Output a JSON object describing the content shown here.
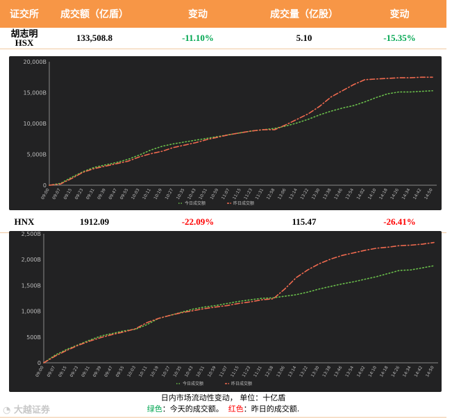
{
  "table": {
    "headers": [
      "证交所",
      "成交额（亿盾）",
      "变动",
      "成交量（亿股）",
      "变动"
    ],
    "rows": [
      {
        "exchange_line1": "胡志明",
        "exchange_line2": "HSX",
        "value": "133,508.8",
        "value_change": "-11.10%",
        "volume": "5.10",
        "volume_change": "-15.35%"
      },
      {
        "exchange": "HNX",
        "value": "1912.09",
        "value_change": "-22.09%",
        "volume": "115.47",
        "volume_change": "-26.41%"
      }
    ]
  },
  "colors": {
    "header_bg": "#f79646",
    "today": "#6abf4b",
    "yesterday": "#f06a4f",
    "up": "#00a651",
    "down": "#ff0000",
    "chart_bg": "#222223"
  },
  "chart_data": [
    {
      "type": "line",
      "x": [
        "09:00",
        "09:07",
        "09:15",
        "09:23",
        "09:31",
        "09:39",
        "09:47",
        "09:55",
        "10:03",
        "10:11",
        "10:19",
        "10:27",
        "10:35",
        "10:43",
        "10:51",
        "10:59",
        "11:07",
        "11:15",
        "11:23",
        "11:31",
        "12:58",
        "13:06",
        "13:14",
        "13:22",
        "13:30",
        "13:38",
        "13:46",
        "13:54",
        "14:02",
        "14:10",
        "14:18",
        "14:26",
        "14:34",
        "14:42",
        "14:50"
      ],
      "ytick_labels": [
        "0",
        "5,000B",
        "10,000B",
        "15,000B",
        "20,000B"
      ],
      "ylim": [
        0,
        20000
      ],
      "legend": [
        "今日成交额",
        "昨日成交额"
      ],
      "series": [
        {
          "name": "今日成交额",
          "values": [
            0,
            300,
            1300,
            2200,
            2900,
            3300,
            3700,
            4200,
            4900,
            5700,
            6300,
            6700,
            7000,
            7300,
            7600,
            7900,
            8200,
            8500,
            8800,
            9000,
            9200,
            9600,
            10100,
            10700,
            11400,
            12000,
            12500,
            12900,
            13500,
            14200,
            14800,
            15100,
            15100,
            15200,
            15300
          ]
        },
        {
          "name": "昨日成交额",
          "values": [
            0,
            200,
            1100,
            2100,
            2700,
            3100,
            3500,
            3900,
            4600,
            5100,
            5500,
            6100,
            6500,
            6900,
            7400,
            7800,
            8200,
            8500,
            8800,
            9000,
            9000,
            9800,
            10700,
            11600,
            12800,
            14300,
            15300,
            16300,
            17100,
            17200,
            17300,
            17400,
            17400,
            17500,
            17500
          ]
        }
      ]
    },
    {
      "type": "line",
      "x": [
        "09:00",
        "09:07",
        "09:15",
        "09:23",
        "09:31",
        "09:39",
        "09:47",
        "09:55",
        "10:03",
        "10:11",
        "10:19",
        "10:27",
        "10:35",
        "10:43",
        "10:51",
        "10:59",
        "11:07",
        "11:15",
        "11:23",
        "11:31",
        "12:58",
        "13:06",
        "13:14",
        "13:22",
        "13:30",
        "13:38",
        "13:46",
        "13:54",
        "14:02",
        "14:10",
        "14:18",
        "14:26",
        "14:34",
        "14:42",
        "14:50"
      ],
      "ytick_labels": [
        "0",
        "500B",
        "1,000B",
        "1,500B",
        "2,000B",
        "2,500B"
      ],
      "ylim": [
        0,
        2500
      ],
      "legend": [
        "今日成交额",
        "昨日成交额"
      ],
      "series": [
        {
          "name": "今日成交额",
          "values": [
            0,
            150,
            260,
            350,
            440,
            520,
            570,
            620,
            650,
            740,
            860,
            920,
            980,
            1040,
            1080,
            1110,
            1150,
            1190,
            1220,
            1250,
            1260,
            1290,
            1320,
            1370,
            1430,
            1480,
            1530,
            1570,
            1620,
            1670,
            1730,
            1790,
            1800,
            1840,
            1880
          ]
        },
        {
          "name": "昨日成交额",
          "values": [
            0,
            130,
            240,
            340,
            420,
            490,
            550,
            600,
            660,
            780,
            860,
            920,
            970,
            1010,
            1050,
            1080,
            1110,
            1150,
            1180,
            1220,
            1240,
            1430,
            1650,
            1800,
            1920,
            2010,
            2080,
            2130,
            2180,
            2220,
            2240,
            2270,
            2280,
            2300,
            2330
          ]
        }
      ]
    }
  ],
  "footer": {
    "line1": "日内市场流动性变动， 单位：十亿盾",
    "green_label": "绿色",
    "green_text": "：今天的成交额。",
    "red_label": "红色",
    "red_text": "：昨日的成交额."
  },
  "watermark": "大越证券"
}
